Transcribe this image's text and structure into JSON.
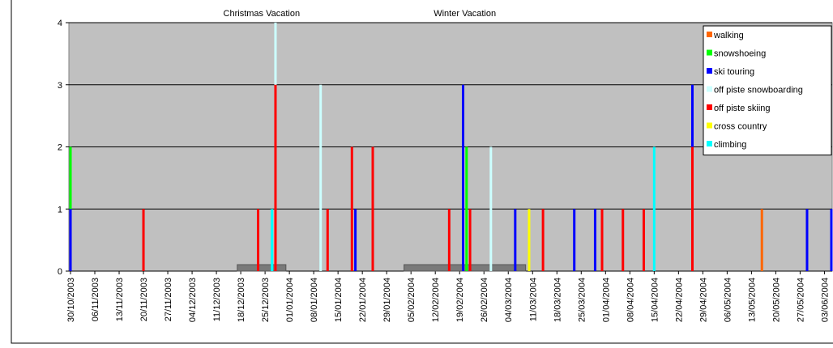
{
  "chart_data": {
    "type": "bar",
    "xlim": [
      "30/10/2003",
      "05/06/2004"
    ],
    "xticks": [
      "30/10/2003",
      "06/11/2003",
      "13/11/2003",
      "20/11/2003",
      "27/11/2003",
      "04/12/2003",
      "11/12/2003",
      "18/12/2003",
      "25/12/2003",
      "01/01/2004",
      "08/01/2004",
      "15/01/2004",
      "22/01/2004",
      "29/01/2004",
      "05/02/2004",
      "12/02/2004",
      "19/02/2004",
      "26/02/2004",
      "04/03/2004",
      "11/03/2004",
      "18/03/2004",
      "25/03/2004",
      "01/04/2004",
      "08/04/2004",
      "15/04/2004",
      "22/04/2004",
      "29/04/2004",
      "06/05/2004",
      "13/05/2004",
      "20/05/2004",
      "27/05/2004",
      "03/06/2004"
    ],
    "ylim": [
      0,
      4
    ],
    "yticks": [
      0,
      1,
      2,
      3,
      4
    ],
    "grid": true,
    "legend": "top-right",
    "annotations": [
      {
        "text": "Christmas Vacation",
        "start": "17/12/2003",
        "end": "31/12/2003"
      },
      {
        "text": "Winter Vacation",
        "start": "03/02/2004",
        "end": "09/03/2004"
      }
    ],
    "series": [
      {
        "name": "walking",
        "color": "#ff6600",
        "x": [
          "16/05/2004"
        ],
        "values": [
          1
        ]
      },
      {
        "name": "snowshoeing",
        "color": "#00ff00",
        "x": [
          "30/10/2003",
          "21/02/2004"
        ],
        "values": [
          2,
          2
        ]
      },
      {
        "name": "ski touring",
        "color": "#0000ff",
        "x": [
          "30/10/2003",
          "20/01/2004",
          "20/02/2004",
          "06/03/2004",
          "23/03/2004",
          "29/03/2004",
          "26/04/2004",
          "29/05/2004",
          "05/06/2004"
        ],
        "values": [
          1,
          1,
          3,
          1,
          1,
          1,
          3,
          1,
          1
        ]
      },
      {
        "name": "off piste snowboarding",
        "color": "#ccffff",
        "x": [
          "28/12/2003",
          "10/01/2004",
          "28/02/2004"
        ],
        "values": [
          4,
          3,
          2
        ]
      },
      {
        "name": "off piste skiing",
        "color": "#ff0000",
        "x": [
          "20/11/2003",
          "23/12/2003",
          "28/12/2003",
          "12/01/2004",
          "19/01/2004",
          "25/01/2004",
          "16/02/2004",
          "22/02/2004",
          "14/03/2004",
          "31/03/2004",
          "06/04/2004",
          "12/04/2004",
          "26/04/2004"
        ],
        "values": [
          1,
          1,
          3,
          1,
          2,
          2,
          1,
          1,
          1,
          1,
          1,
          1,
          2
        ]
      },
      {
        "name": "cross country",
        "color": "#ffff00",
        "x": [
          "10/03/2004"
        ],
        "values": [
          1
        ]
      },
      {
        "name": "climbing",
        "color": "#00ffff",
        "x": [
          "27/12/2003",
          "15/04/2004"
        ],
        "values": [
          1,
          2
        ]
      }
    ]
  }
}
